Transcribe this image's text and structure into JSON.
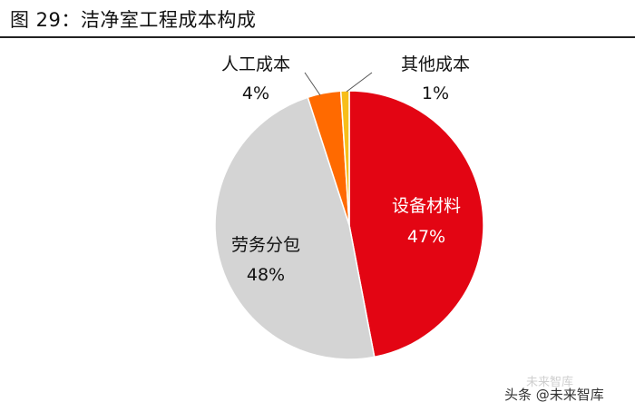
{
  "header": {
    "figure_title": "图 29：洁净室工程成本构成"
  },
  "colors": {
    "equipment": "#e30513",
    "labor_subcontract": "#d4d4d4",
    "labor_cost": "#ff6a00",
    "other": "#f7be1a",
    "title_rule": "#222222",
    "slice_border": "#ffffff"
  },
  "chart_data": {
    "type": "pie",
    "slices": [
      {
        "label": "设备材料",
        "percent_label": "47%",
        "value": 47,
        "color": "#e30513"
      },
      {
        "label": "劳务分包",
        "percent_label": "48%",
        "value": 48,
        "color": "#d4d4d4"
      },
      {
        "label": "人工成本",
        "percent_label": "4%",
        "value": 4,
        "color": "#ff6a00"
      },
      {
        "label": "其他成本",
        "percent_label": "1%",
        "value": 1,
        "color": "#f7be1a"
      }
    ]
  },
  "watermark": {
    "text": "头条 @未来智库",
    "faint_text": "未来智库"
  }
}
